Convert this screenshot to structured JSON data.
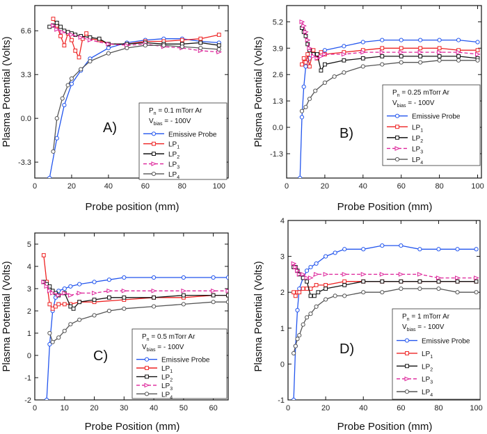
{
  "figure": {
    "background": "#ffffff"
  },
  "series_styles": [
    {
      "color": "#2255ee",
      "marker": "circle",
      "dash": ""
    },
    {
      "color": "#ee2222",
      "marker": "square",
      "dash": ""
    },
    {
      "color": "#111111",
      "marker": "square",
      "dash": ""
    },
    {
      "color": "#dd2299",
      "marker": "triangle",
      "dash": "5,3"
    },
    {
      "color": "#555555",
      "marker": "circle",
      "dash": ""
    }
  ],
  "chart_data": [
    {
      "type": "line",
      "panel_label": "A)",
      "xlabel": "Probe position (mm)",
      "ylabel": "Plasma Potential (Volts)",
      "xlim": [
        0,
        105
      ],
      "ylim": [
        -4.5,
        8.5
      ],
      "xticks": [
        0,
        20,
        40,
        60,
        80,
        100
      ],
      "yticks": [
        -3.3,
        0.0,
        3.3,
        6.6
      ],
      "ytick_labels": [
        "-3.3",
        "0.0",
        "3.3",
        "6.6"
      ],
      "legend": {
        "condition_line1": "Pn = 0.1 mTorr Ar",
        "condition_line2": "Vbias = - 100V",
        "position": "middle-right"
      },
      "series": [
        {
          "name": "Emissive Probe",
          "x": [
            8,
            12,
            16,
            20,
            25,
            30,
            40,
            50,
            60,
            70,
            80,
            90,
            100
          ],
          "y": [
            -4.5,
            -1.5,
            1.0,
            2.6,
            3.6,
            4.5,
            5.3,
            5.7,
            5.9,
            6.0,
            6.0,
            5.8,
            5.7
          ]
        },
        {
          "name": "LP1",
          "x": [
            10,
            12,
            14,
            16,
            18,
            20,
            22,
            24,
            26,
            28,
            30,
            35,
            40,
            50,
            60,
            70,
            80,
            90,
            100
          ],
          "y": [
            7.5,
            7.0,
            6.2,
            5.5,
            6.4,
            5.9,
            5.1,
            4.6,
            6.0,
            6.4,
            6.0,
            5.9,
            5.6,
            5.6,
            5.8,
            5.8,
            5.9,
            6.0,
            6.3
          ]
        },
        {
          "name": "LP2",
          "x": [
            8,
            10,
            12,
            14,
            16,
            18,
            20,
            22,
            25,
            30,
            35,
            40,
            50,
            60,
            70,
            80,
            90,
            100
          ],
          "y": [
            6.9,
            7.0,
            7.2,
            6.9,
            6.6,
            6.5,
            6.4,
            6.3,
            6.2,
            6.1,
            6.0,
            5.6,
            5.6,
            5.7,
            5.6,
            5.6,
            5.7,
            5.5
          ]
        },
        {
          "name": "LP3",
          "x": [
            10,
            12,
            15,
            20,
            25,
            30,
            40,
            50,
            60,
            70,
            80,
            90,
            100
          ],
          "y": [
            7.0,
            6.7,
            6.5,
            6.3,
            6.1,
            5.9,
            5.6,
            5.5,
            5.6,
            5.4,
            5.3,
            5.1,
            5.0
          ]
        },
        {
          "name": "LP4",
          "x": [
            10,
            12,
            15,
            18,
            20,
            25,
            30,
            40,
            50,
            60,
            70,
            80,
            90,
            100
          ],
          "y": [
            -2.5,
            0.0,
            1.5,
            2.5,
            3.0,
            3.7,
            4.3,
            4.9,
            5.3,
            5.5,
            5.5,
            5.4,
            5.3,
            5.2
          ]
        }
      ]
    },
    {
      "type": "line",
      "panel_label": "B)",
      "xlabel": "Probe Position (mm)",
      "ylabel": "Plasma Potential (Volts)",
      "xlim": [
        0,
        102
      ],
      "ylim": [
        -2.5,
        6.0
      ],
      "xticks": [
        0,
        20,
        40,
        60,
        80,
        100
      ],
      "yticks": [
        -1.3,
        0.0,
        1.3,
        2.6,
        3.9,
        5.2
      ],
      "ytick_labels": [
        "-1.3",
        "0.0",
        "1.3",
        "2.6",
        "3.9",
        "5.2"
      ],
      "legend": {
        "condition_line1": "Pn = 0.25 mTorr Ar",
        "condition_line2": "Vbias = - 100V",
        "position": "middle-right"
      },
      "series": [
        {
          "name": "Emissive Probe",
          "x": [
            7,
            8,
            9,
            10,
            12,
            15,
            20,
            30,
            40,
            50,
            60,
            70,
            80,
            90,
            100
          ],
          "y": [
            -2.5,
            0.5,
            2.0,
            3.0,
            3.4,
            3.6,
            3.8,
            4.0,
            4.2,
            4.3,
            4.3,
            4.3,
            4.3,
            4.3,
            4.2
          ]
        },
        {
          "name": "LP1",
          "x": [
            8,
            9,
            10,
            11,
            12,
            14,
            16,
            18,
            20,
            30,
            40,
            50,
            60,
            70,
            80,
            90,
            100
          ],
          "y": [
            3.1,
            3.4,
            3.2,
            3.6,
            3.0,
            3.8,
            3.4,
            3.7,
            3.6,
            3.7,
            3.8,
            3.9,
            3.9,
            3.9,
            3.9,
            3.8,
            3.8
          ]
        },
        {
          "name": "LP2",
          "x": [
            8,
            9,
            10,
            11,
            12,
            14,
            16,
            18,
            20,
            30,
            40,
            50,
            60,
            70,
            80,
            90,
            100
          ],
          "y": [
            4.9,
            4.7,
            4.5,
            4.1,
            3.8,
            3.6,
            3.6,
            2.8,
            3.1,
            3.3,
            3.4,
            3.5,
            3.5,
            3.5,
            3.5,
            3.5,
            3.4
          ]
        },
        {
          "name": "LP3",
          "x": [
            8,
            9,
            10,
            11,
            12,
            14,
            16,
            18,
            20,
            30,
            40,
            50,
            60,
            70,
            80,
            90,
            100
          ],
          "y": [
            5.2,
            5.0,
            4.7,
            4.3,
            3.9,
            3.5,
            3.4,
            3.5,
            3.6,
            3.6,
            3.7,
            3.7,
            3.7,
            3.7,
            3.7,
            3.7,
            3.6
          ]
        },
        {
          "name": "LP4",
          "x": [
            8,
            10,
            12,
            15,
            20,
            25,
            30,
            40,
            50,
            60,
            70,
            80,
            90,
            100
          ],
          "y": [
            0.8,
            1.0,
            1.4,
            1.8,
            2.2,
            2.5,
            2.7,
            3.0,
            3.1,
            3.2,
            3.2,
            3.3,
            3.3,
            3.3
          ]
        }
      ]
    },
    {
      "type": "line",
      "panel_label": "C)",
      "xlabel": "Probe Position (mm)",
      "ylabel": "Plasma Potential (Volts)",
      "xlim": [
        0,
        65
      ],
      "ylim": [
        -2,
        5.5
      ],
      "xticks": [
        0,
        10,
        20,
        30,
        40,
        50,
        60
      ],
      "yticks": [
        -2,
        -1,
        0,
        1,
        2,
        3,
        4,
        5
      ],
      "ytick_labels": [
        "-2",
        "-1",
        "0",
        "1",
        "2",
        "3",
        "4",
        "5"
      ],
      "legend": {
        "condition_line1": "Pn = 0.5 mTorr Ar",
        "condition_line2": "Vbias = - 100V",
        "position": "bottom-right"
      },
      "series": [
        {
          "name": "Emissive Probe",
          "x": [
            4,
            5,
            6,
            7,
            8,
            10,
            12,
            15,
            20,
            25,
            30,
            40,
            50,
            60,
            65
          ],
          "y": [
            -2.0,
            0.5,
            2.0,
            2.6,
            2.9,
            3.0,
            3.1,
            3.2,
            3.3,
            3.4,
            3.5,
            3.5,
            3.5,
            3.5,
            3.5
          ]
        },
        {
          "name": "LP1",
          "x": [
            3,
            4,
            5,
            6,
            7,
            8,
            10,
            12,
            15,
            20,
            30,
            40,
            50,
            60,
            65
          ],
          "y": [
            4.5,
            3.3,
            2.3,
            2.1,
            2.2,
            2.3,
            2.3,
            2.3,
            2.4,
            2.4,
            2.5,
            2.6,
            2.6,
            2.7,
            2.7
          ]
        },
        {
          "name": "LP2",
          "x": [
            3,
            4,
            5,
            6,
            7,
            8,
            10,
            12,
            13,
            15,
            20,
            25,
            30,
            40,
            50,
            60,
            65
          ],
          "y": [
            3.3,
            3.2,
            3.1,
            2.9,
            2.8,
            2.7,
            2.8,
            2.2,
            2.1,
            2.4,
            2.5,
            2.6,
            2.6,
            2.6,
            2.7,
            2.7,
            2.7
          ]
        },
        {
          "name": "LP3",
          "x": [
            3,
            4,
            5,
            6,
            8,
            10,
            12,
            15,
            20,
            25,
            30,
            40,
            50,
            60,
            65
          ],
          "y": [
            3.3,
            3.1,
            2.9,
            2.8,
            2.7,
            2.8,
            2.7,
            2.8,
            2.8,
            2.9,
            2.9,
            2.9,
            2.9,
            2.9,
            2.9
          ]
        },
        {
          "name": "LP4",
          "x": [
            5,
            6,
            8,
            10,
            12,
            15,
            20,
            25,
            30,
            40,
            50,
            60,
            65
          ],
          "y": [
            1.0,
            0.6,
            0.8,
            1.1,
            1.4,
            1.6,
            1.8,
            2.0,
            2.1,
            2.2,
            2.3,
            2.4,
            2.4
          ]
        }
      ]
    },
    {
      "type": "line",
      "panel_label": "D)",
      "xlabel": "Probe Position (mm)",
      "ylabel": "Plasma Potential (Volts)",
      "xlim": [
        0,
        102
      ],
      "ylim": [
        -1,
        4
      ],
      "xticks": [
        0,
        20,
        40,
        60,
        80,
        100
      ],
      "yticks": [
        -1,
        0,
        1,
        2,
        3,
        4
      ],
      "ytick_labels": [
        "-1",
        "0",
        "1",
        "2",
        "3",
        "4"
      ],
      "legend": {
        "condition_line1": "Pn = 1 mTorr Ar",
        "condition_line2": "Vbias = - 100V",
        "position": "bottom-right"
      },
      "series": [
        {
          "name": "Emissive Probe",
          "x": [
            3,
            4,
            5,
            6,
            8,
            10,
            12,
            15,
            20,
            25,
            30,
            40,
            50,
            60,
            70,
            80,
            90,
            100
          ],
          "y": [
            -1.0,
            0.5,
            1.5,
            2.1,
            2.4,
            2.6,
            2.7,
            2.8,
            3.0,
            3.1,
            3.2,
            3.2,
            3.3,
            3.3,
            3.2,
            3.2,
            3.2,
            3.2
          ]
        },
        {
          "name": "LP1",
          "x": [
            3,
            4,
            5,
            6,
            8,
            10,
            12,
            15,
            20,
            30,
            40,
            50,
            60,
            70,
            80,
            90,
            100
          ],
          "y": [
            2.0,
            1.9,
            2.0,
            2.0,
            2.1,
            2.1,
            2.1,
            2.2,
            2.2,
            2.3,
            2.3,
            2.3,
            2.3,
            2.3,
            2.3,
            2.3,
            2.3
          ]
        },
        {
          "name": "LP2",
          "x": [
            3,
            4,
            5,
            6,
            8,
            10,
            12,
            14,
            16,
            20,
            30,
            40,
            50,
            60,
            70,
            80,
            90,
            100
          ],
          "y": [
            2.7,
            2.7,
            2.6,
            2.5,
            2.4,
            2.3,
            1.9,
            1.9,
            2.0,
            2.1,
            2.2,
            2.3,
            2.3,
            2.3,
            2.3,
            2.3,
            2.3,
            2.3
          ]
        },
        {
          "name": "LP3",
          "x": [
            3,
            4,
            5,
            6,
            8,
            10,
            12,
            15,
            20,
            30,
            40,
            50,
            60,
            70,
            80,
            90,
            100
          ],
          "y": [
            2.8,
            2.7,
            2.6,
            2.5,
            2.5,
            2.4,
            2.4,
            2.5,
            2.5,
            2.5,
            2.5,
            2.5,
            2.5,
            2.5,
            2.4,
            2.4,
            2.4
          ]
        },
        {
          "name": "LP4",
          "x": [
            3,
            4,
            5,
            6,
            8,
            10,
            12,
            15,
            20,
            25,
            30,
            40,
            50,
            60,
            70,
            80,
            90,
            100
          ],
          "y": [
            0.3,
            0.5,
            0.7,
            0.8,
            1.1,
            1.3,
            1.4,
            1.6,
            1.8,
            1.9,
            1.9,
            2.0,
            2.0,
            2.1,
            2.1,
            2.1,
            2.0,
            2.0
          ]
        }
      ]
    }
  ]
}
